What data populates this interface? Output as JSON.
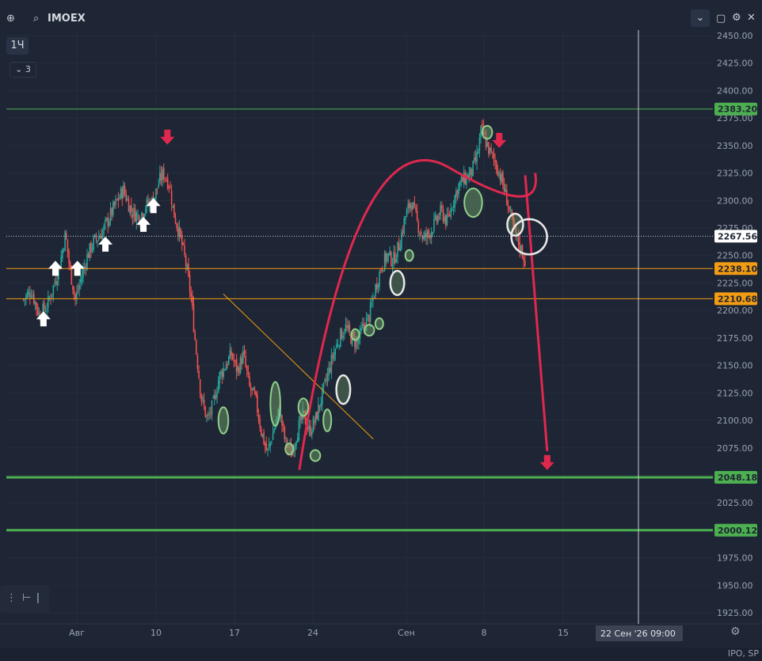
{
  "header": {
    "symbol": "IMOEX",
    "timeframe": "1Ч",
    "indicator_count": "3",
    "icons": [
      "plus-circle-icon",
      "search-icon",
      "chevron-down-icon",
      "square-icon",
      "gear-icon",
      "close-icon"
    ]
  },
  "chart_data": {
    "type": "candlestick",
    "y_axis": {
      "min": 1915,
      "max": 2455,
      "ticks": [
        2450,
        2425,
        2400,
        2375,
        2350,
        2325,
        2300,
        2275,
        2250,
        2225,
        2200,
        2175,
        2150,
        2125,
        2100,
        2075,
        2050,
        2025,
        2000,
        1975,
        1950,
        1925
      ]
    },
    "x_axis": {
      "ticks": [
        "Авг",
        "10",
        "17",
        "24",
        "Сен",
        "8",
        "15"
      ]
    },
    "crosshair_label": "22 Сен '26   09:00",
    "price_lines": [
      {
        "value": 2383.2,
        "label": "2383.20",
        "color": "#4caf50",
        "width": 1
      },
      {
        "value": 2267.56,
        "label": "2267.56",
        "color": "#c8ccd4",
        "width": 1,
        "style": "dotted"
      },
      {
        "value": 2238.1,
        "label": "2238.10",
        "color": "#f39c12",
        "width": 1
      },
      {
        "value": 2210.68,
        "label": "2210.68",
        "color": "#f39c12",
        "width": 1
      },
      {
        "value": 2048.18,
        "label": "2048.18",
        "color": "#4caf50",
        "width": 3
      },
      {
        "value": 2000.12,
        "label": "2000.12",
        "color": "#4caf50",
        "width": 3
      }
    ],
    "close_path": [
      [
        0.5,
        2210
      ],
      [
        0.9,
        2218
      ],
      [
        1.3,
        2195
      ],
      [
        1.7,
        2205
      ],
      [
        2.0,
        2222
      ],
      [
        2.3,
        2240
      ],
      [
        2.6,
        2270
      ],
      [
        2.8,
        2240
      ],
      [
        3.1,
        2210
      ],
      [
        3.4,
        2230
      ],
      [
        3.7,
        2250
      ],
      [
        4.0,
        2262
      ],
      [
        4.4,
        2270
      ],
      [
        4.8,
        2285
      ],
      [
        5.2,
        2300
      ],
      [
        5.5,
        2310
      ],
      [
        5.9,
        2290
      ],
      [
        6.3,
        2285
      ],
      [
        6.6,
        2295
      ],
      [
        7.0,
        2300
      ],
      [
        7.3,
        2318
      ],
      [
        7.5,
        2325
      ],
      [
        7.8,
        2315
      ],
      [
        8.0,
        2290
      ],
      [
        8.3,
        2270
      ],
      [
        8.6,
        2245
      ],
      [
        8.9,
        2210
      ],
      [
        9.1,
        2170
      ],
      [
        9.4,
        2120
      ],
      [
        9.7,
        2100
      ],
      [
        10.0,
        2115
      ],
      [
        10.3,
        2140
      ],
      [
        10.6,
        2150
      ],
      [
        10.9,
        2160
      ],
      [
        11.2,
        2145
      ],
      [
        11.5,
        2160
      ],
      [
        11.8,
        2130
      ],
      [
        12.1,
        2120
      ],
      [
        12.4,
        2090
      ],
      [
        12.7,
        2070
      ],
      [
        13.0,
        2090
      ],
      [
        13.3,
        2110
      ],
      [
        13.6,
        2080
      ],
      [
        13.9,
        2070
      ],
      [
        14.2,
        2090
      ],
      [
        14.5,
        2105
      ],
      [
        14.8,
        2090
      ],
      [
        15.1,
        2100
      ],
      [
        15.4,
        2120
      ],
      [
        15.7,
        2140
      ],
      [
        16.0,
        2160
      ],
      [
        16.3,
        2175
      ],
      [
        16.6,
        2185
      ],
      [
        16.9,
        2175
      ],
      [
        17.2,
        2170
      ],
      [
        17.5,
        2185
      ],
      [
        17.8,
        2195
      ],
      [
        18.1,
        2220
      ],
      [
        18.4,
        2240
      ],
      [
        18.7,
        2250
      ],
      [
        19.0,
        2245
      ],
      [
        19.3,
        2260
      ],
      [
        19.6,
        2285
      ],
      [
        19.9,
        2300
      ],
      [
        20.2,
        2280
      ],
      [
        20.5,
        2265
      ],
      [
        20.8,
        2270
      ],
      [
        21.1,
        2280
      ],
      [
        21.4,
        2290
      ],
      [
        21.7,
        2280
      ],
      [
        22.0,
        2300
      ],
      [
        22.3,
        2315
      ],
      [
        22.6,
        2320
      ],
      [
        22.9,
        2325
      ],
      [
        23.2,
        2340
      ],
      [
        23.4,
        2365
      ],
      [
        23.6,
        2355
      ],
      [
        23.8,
        2345
      ],
      [
        24.1,
        2335
      ],
      [
        24.4,
        2320
      ],
      [
        24.7,
        2300
      ],
      [
        25.0,
        2275
      ],
      [
        25.3,
        2260
      ],
      [
        25.6,
        2245
      ]
    ],
    "annotations": {
      "buy_arrows": [
        [
          1.5,
          2192
        ],
        [
          2.1,
          2238
        ],
        [
          3.2,
          2238
        ],
        [
          4.6,
          2260
        ],
        [
          6.5,
          2278
        ],
        [
          7.0,
          2295
        ]
      ],
      "sell_arrows": [
        [
          7.7,
          2358
        ],
        [
          24.3,
          2355
        ],
        [
          26.7,
          2062
        ]
      ],
      "trendline": [
        [
          10.5,
          2215
        ],
        [
          18.0,
          2083
        ]
      ],
      "arc": [
        [
          14.3,
          2055
        ],
        [
          26.1,
          2325
        ]
      ],
      "down_arrow_line": [
        [
          25.6,
          2323
        ],
        [
          26.7,
          2072
        ]
      ],
      "green_ovals": [
        [
          10.5,
          2100,
          0.25,
          12
        ],
        [
          13.1,
          2115,
          0.25,
          20
        ],
        [
          14.5,
          2112,
          0.25,
          8
        ],
        [
          13.8,
          2074,
          0.2,
          5
        ],
        [
          15.1,
          2068,
          0.25,
          5
        ],
        [
          15.7,
          2100,
          0.2,
          10
        ],
        [
          17.1,
          2178,
          0.2,
          5
        ],
        [
          17.8,
          2182,
          0.25,
          5
        ],
        [
          18.3,
          2188,
          0.2,
          5
        ],
        [
          19.8,
          2250,
          0.2,
          5
        ],
        [
          23.0,
          2298,
          0.45,
          13
        ],
        [
          23.7,
          2362,
          0.25,
          6
        ]
      ],
      "white_ovals": [
        [
          16.5,
          2128,
          0.35,
          13
        ],
        [
          19.2,
          2225,
          0.35,
          11
        ],
        [
          25.1,
          2278,
          0.4,
          10
        ],
        [
          25.8,
          2267,
          0.9,
          16
        ]
      ]
    }
  },
  "status_bar": {
    "text": "IPO, SP"
  }
}
